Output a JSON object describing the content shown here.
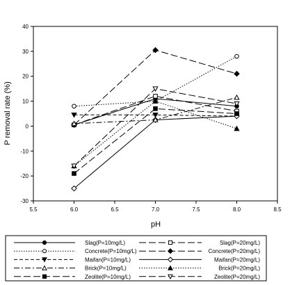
{
  "chart_data": {
    "type": "line",
    "xlabel": "pH",
    "ylabel": "P removal rate (%)",
    "xlim": [
      5.5,
      8.5
    ],
    "ylim": [
      -30,
      40
    ],
    "xticks": [
      "5.5",
      "6.0",
      "6.5",
      "7.0",
      "7.5",
      "8.0",
      "8.5"
    ],
    "yticks": [
      "-30",
      "-20",
      "-10",
      "0",
      "10",
      "20",
      "30",
      "40"
    ],
    "xtick_values": [
      5.5,
      6.0,
      6.5,
      7.0,
      7.5,
      8.0,
      8.5
    ],
    "ytick_values": [
      -30,
      -20,
      -10,
      0,
      10,
      20,
      30,
      40
    ],
    "x": [
      6.0,
      7.0,
      8.0
    ],
    "grid": false,
    "legend_position": "bottom",
    "series": [
      {
        "name": "Slag(P=10mg/L)",
        "values": [
          0.5,
          11,
          8
        ],
        "color": "#000000",
        "dash": "solid",
        "marker": "circle",
        "fill": "filled"
      },
      {
        "name": "Slag(P=20mg/L)",
        "values": [
          0.5,
          12,
          6
        ],
        "color": "#000000",
        "dash": "longdash",
        "marker": "square",
        "fill": "open"
      },
      {
        "name": "Concrete(P=10mg/L)",
        "values": [
          8,
          10,
          28
        ],
        "color": "#000000",
        "dash": "dotted",
        "marker": "circle",
        "fill": "open"
      },
      {
        "name": "Concrete(P=20mg/L)",
        "values": [
          0.5,
          30.5,
          21
        ],
        "color": "#000000",
        "dash": "longdash",
        "marker": "diamond",
        "fill": "filled"
      },
      {
        "name": "Maifan(P=10mg/L)",
        "values": [
          4.5,
          4.5,
          4
        ],
        "color": "#000000",
        "dash": "dashed",
        "marker": "triangle-down",
        "fill": "filled"
      },
      {
        "name": "Maifan(P=20mg/L)",
        "values": [
          -25,
          2.5,
          4
        ],
        "color": "#000000",
        "dash": "solid",
        "marker": "diamond",
        "fill": "open"
      },
      {
        "name": "Brick(P=10mg/L)",
        "values": [
          1,
          2.5,
          11.5
        ],
        "color": "#000000",
        "dash": "dashdot",
        "marker": "triangle-up",
        "fill": "open"
      },
      {
        "name": "Brick(P=20mg/L)",
        "values": [
          -16,
          10,
          -1
        ],
        "color": "#000000",
        "dash": "dotted",
        "marker": "triangle-up",
        "fill": "filled"
      },
      {
        "name": "Zeolite(P=10mg/L)",
        "values": [
          -19,
          7,
          5
        ],
        "color": "#000000",
        "dash": "longdash",
        "marker": "square",
        "fill": "filled"
      },
      {
        "name": "Zeolite(P=20mg/L)",
        "values": [
          -16,
          15,
          9
        ],
        "color": "#000000",
        "dash": "longdash",
        "marker": "triangle-down",
        "fill": "open"
      }
    ]
  }
}
